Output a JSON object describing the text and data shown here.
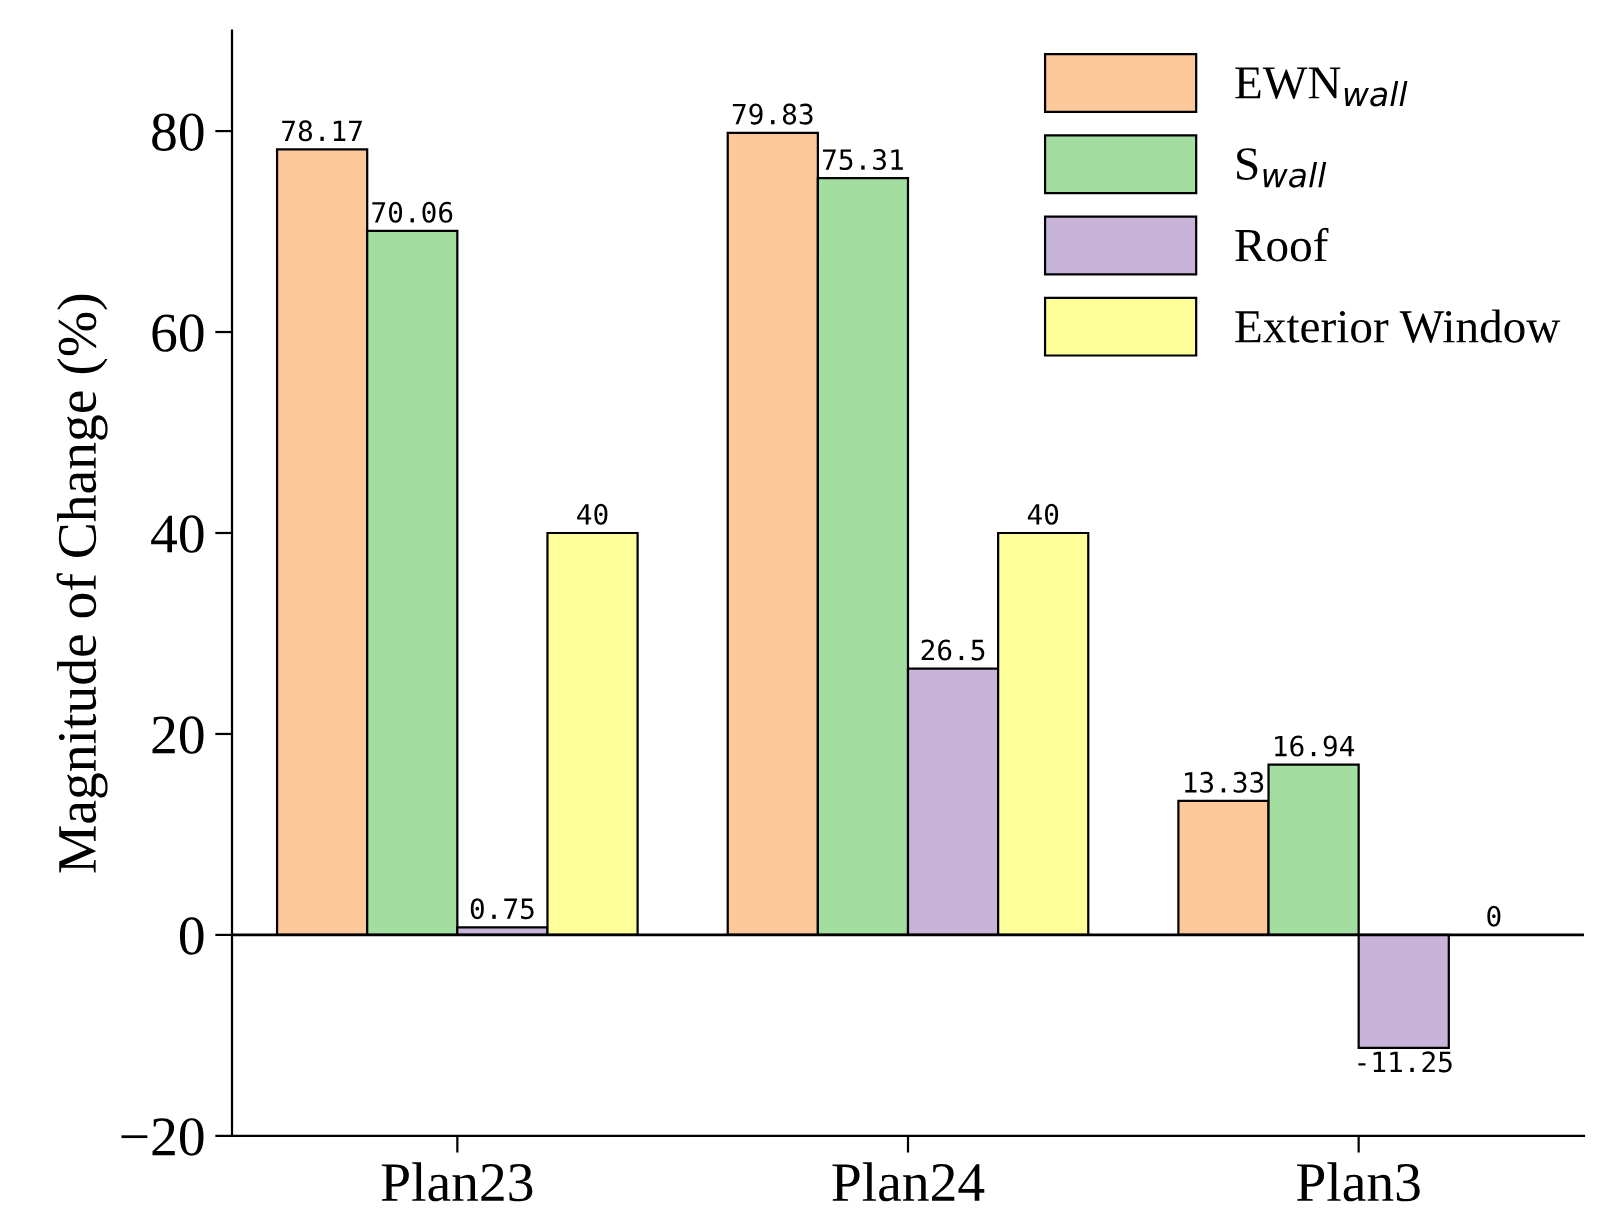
{
  "chart_data": {
    "type": "bar",
    "ylabel": "Magnitude of Change (%)",
    "categories": [
      "Plan23",
      "Plan24",
      "Plan3"
    ],
    "series": [
      {
        "name": "EWN$_{wall}$",
        "color": "#fdc99a",
        "values": [
          78.17,
          79.83,
          13.33
        ]
      },
      {
        "name": "S$_{wall}$",
        "color": "#a3dea0",
        "values": [
          70.06,
          75.31,
          16.94
        ]
      },
      {
        "name": "Roof",
        "color": "#c8b4d8",
        "values": [
          0.75,
          26.5,
          -11.25
        ]
      },
      {
        "name": "Exterior Window",
        "color": "#ffff99",
        "values": [
          40,
          40,
          0
        ]
      }
    ],
    "ylim": [
      -20,
      90
    ],
    "yticks": [
      {
        "value": -20,
        "label": "−20"
      },
      0,
      20,
      40,
      60,
      80
    ],
    "ref_lines": [
      {
        "axis": "y",
        "value": 0,
        "color": "#000000"
      }
    ],
    "data_labels": true,
    "legend": "top right",
    "grid": false
  }
}
